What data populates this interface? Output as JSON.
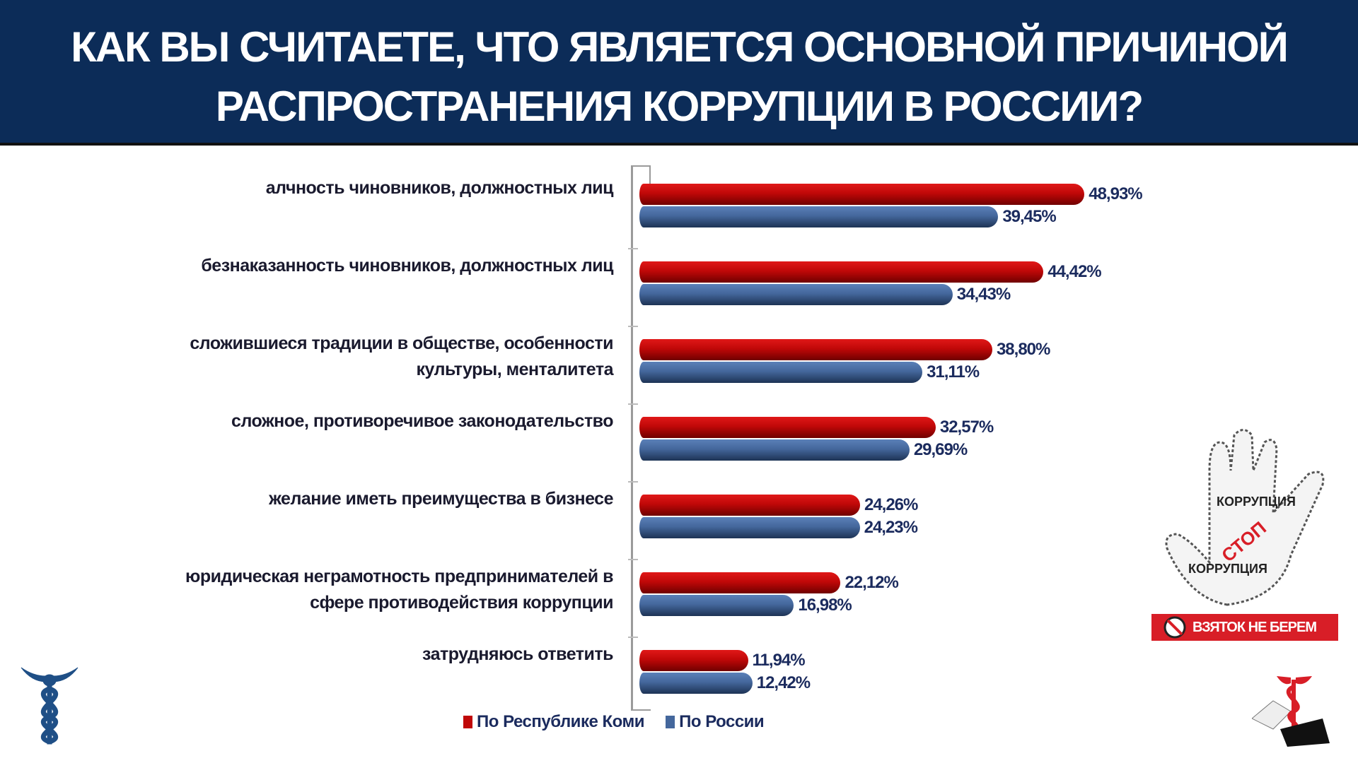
{
  "header": {
    "title_line1": "КАК ВЫ СЧИТАЕТЕ, ЧТО ЯВЛЯЕТСЯ ОСНОВНОЙ ПРИЧИНОЙ",
    "title_line2": "РАСПРОСТРАНЕНИЯ КОРРУПЦИИ В РОССИИ?"
  },
  "chart_data": {
    "type": "bar",
    "orientation": "horizontal",
    "title": "КАК ВЫ СЧИТАЕТЕ, ЧТО ЯВЛЯЕТСЯ ОСНОВНОЙ ПРИЧИНОЙ РАСПРОСТРАНЕНИЯ КОРРУПЦИИ В РОССИИ?",
    "categories": [
      [
        "алчность чиновников, должностных лиц"
      ],
      [
        "безнаказанность чиновников, должностных лиц"
      ],
      [
        "сложившиеся традиции в обществе, особенности",
        "культуры, менталитета"
      ],
      [
        "сложное, противоречивое законодательство"
      ],
      [
        "желание иметь преимущества в бизнесе"
      ],
      [
        "юридическая неграмотность предпринимателей в",
        "сфере противодействия коррупции"
      ],
      [
        "затрудняюсь ответить"
      ]
    ],
    "series": [
      {
        "name": "По Республике Коми",
        "color": "#c00808",
        "values": [
          48.93,
          44.42,
          38.8,
          32.57,
          24.26,
          22.12,
          11.94
        ],
        "labels": [
          "48,93%",
          "44,42%",
          "38,80%",
          "32,57%",
          "24,26%",
          "22,12%",
          "11,94%"
        ]
      },
      {
        "name": "По России",
        "color": "#44679c",
        "values": [
          39.45,
          34.43,
          31.11,
          29.69,
          24.23,
          16.98,
          12.42
        ],
        "labels": [
          "39,45%",
          "34,43%",
          "31,11%",
          "29,69%",
          "24,23%",
          "16,98%",
          "12,42%"
        ]
      }
    ],
    "xlim": [
      0,
      50
    ],
    "grid": false,
    "legend": "bottom"
  },
  "decor": {
    "banner_text": "ВЗЯТОК НЕ БЕРЕМ",
    "hand_words": [
      "СТОП",
      "КОРРУПЦИЯ"
    ]
  }
}
